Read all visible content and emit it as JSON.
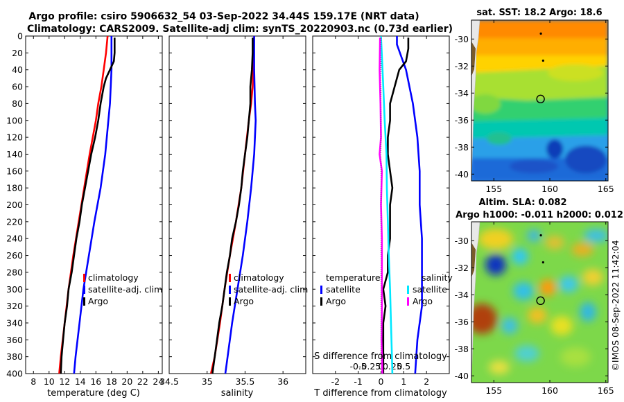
{
  "title": {
    "line1": "Argo profile: csiro 5906632_54 03-Sep-2022 34.44S 159.17E (NRT data)",
    "line2": "Climatology: CARS2009. Satellite-adj clim: synTS_20220903.nc (0.73d earlier)"
  },
  "colors": {
    "climatology": "#ff0000",
    "satellite": "#0000ff",
    "argo": "#000000",
    "cyan": "#00e8ff",
    "magenta": "#ff00ff"
  },
  "chart_data": [
    {
      "type": "line",
      "name": "temperature",
      "xlabel": "temperature (deg C)",
      "ylabel": "",
      "xlim": [
        7,
        24.5
      ],
      "ylim": [
        400,
        0
      ],
      "xticks": [
        "8",
        "10",
        "12",
        "14",
        "16",
        "18",
        "20",
        "22",
        "24"
      ],
      "xtick_values": [
        8,
        10,
        12,
        14,
        16,
        18,
        20,
        22,
        24
      ],
      "yticks": [
        "0",
        "20",
        "40",
        "60",
        "80",
        "100",
        "120",
        "140",
        "160",
        "180",
        "200",
        "220",
        "240",
        "260",
        "280",
        "300",
        "320",
        "340",
        "360",
        "380",
        "400"
      ],
      "ytick_values": [
        0,
        20,
        40,
        60,
        80,
        100,
        120,
        140,
        160,
        180,
        200,
        220,
        240,
        260,
        280,
        300,
        320,
        340,
        360,
        380,
        400
      ],
      "legend": [
        "climatology",
        "satellite-adj. clim",
        "Argo"
      ],
      "series": [
        {
          "name": "climatology",
          "color": "#ff0000",
          "depth": [
            0,
            20,
            40,
            60,
            80,
            100,
            140,
            180,
            220,
            260,
            300,
            340,
            380,
            400
          ],
          "values": [
            17.5,
            17.3,
            17.0,
            16.7,
            16.3,
            16.0,
            15.2,
            14.5,
            13.8,
            13.1,
            12.5,
            12.0,
            11.5,
            11.3
          ]
        },
        {
          "name": "satellite-adj. clim",
          "color": "#0000ff",
          "depth": [
            0,
            10,
            40,
            60,
            80,
            100,
            140,
            180,
            220,
            260,
            300,
            340,
            380,
            400
          ],
          "values": [
            18.0,
            18.0,
            18.0,
            17.9,
            17.8,
            17.6,
            17.2,
            16.6,
            15.8,
            15.1,
            14.4,
            13.9,
            13.4,
            13.2
          ]
        },
        {
          "name": "Argo",
          "color": "#000000",
          "depth": [
            2,
            20,
            30,
            40,
            50,
            60,
            80,
            100,
            120,
            140,
            160,
            180,
            200,
            220,
            240,
            260,
            280,
            300,
            320,
            340,
            360,
            380,
            400
          ],
          "values": [
            18.4,
            18.4,
            18.3,
            17.8,
            17.3,
            17.0,
            16.6,
            16.3,
            15.9,
            15.4,
            15.0,
            14.6,
            14.2,
            13.9,
            13.5,
            13.2,
            12.9,
            12.5,
            12.3,
            12.0,
            11.8,
            11.6,
            11.5
          ]
        }
      ]
    },
    {
      "type": "line",
      "name": "salinity",
      "xlabel": "salinity",
      "ylabel": "",
      "xlim": [
        34.5,
        36.3
      ],
      "ylim": [
        400,
        0
      ],
      "xticks": [
        "34.5",
        "35",
        "35.5",
        "36"
      ],
      "xtick_values": [
        34.5,
        35,
        35.5,
        36
      ],
      "legend": [
        "climatology",
        "satellite-adj. clim",
        "Argo"
      ],
      "series": [
        {
          "name": "climatology",
          "color": "#ff0000",
          "depth": [
            0,
            40,
            60,
            80,
            100,
            140,
            180,
            220,
            260,
            300,
            340,
            380,
            400
          ],
          "values": [
            35.62,
            35.61,
            35.6,
            35.58,
            35.55,
            35.5,
            35.45,
            35.38,
            35.3,
            35.23,
            35.17,
            35.1,
            35.05
          ]
        },
        {
          "name": "satellite-adj. clim",
          "color": "#0000ff",
          "depth": [
            0,
            40,
            80,
            100,
            120,
            140,
            180,
            220,
            260,
            300,
            340,
            380,
            400
          ],
          "values": [
            35.62,
            35.62,
            35.63,
            35.64,
            35.63,
            35.62,
            35.58,
            35.53,
            35.47,
            35.4,
            35.33,
            35.27,
            35.24
          ]
        },
        {
          "name": "Argo",
          "color": "#000000",
          "depth": [
            2,
            20,
            40,
            60,
            80,
            100,
            120,
            140,
            160,
            180,
            200,
            220,
            240,
            260,
            280,
            300,
            320,
            340,
            360,
            380,
            400
          ],
          "values": [
            35.6,
            35.6,
            35.59,
            35.57,
            35.57,
            35.55,
            35.53,
            35.5,
            35.47,
            35.45,
            35.42,
            35.38,
            35.33,
            35.3,
            35.26,
            35.23,
            35.2,
            35.16,
            35.13,
            35.1,
            35.07
          ]
        }
      ]
    },
    {
      "type": "line",
      "name": "difference from climatology",
      "xlabel": "T difference from climatology",
      "top_xlabel": "S difference from climatology",
      "xlim": [
        -3,
        3
      ],
      "ylim": [
        400,
        0
      ],
      "xticks": [
        "-2",
        "-1",
        "0",
        "1",
        "2"
      ],
      "xtick_values": [
        -2,
        -1,
        0,
        1,
        2
      ],
      "s_xticks": [
        "-0.5",
        "-0.25",
        "0",
        "0.25",
        "0.5"
      ],
      "s_xtick_values": [
        -0.5,
        -0.25,
        0,
        0.25,
        0.5
      ],
      "legend_temperature": {
        "title": "temperature",
        "items": [
          "satellite",
          "Argo"
        ]
      },
      "legend_salinity": {
        "title": "salinity",
        "items": [
          "satellite",
          "Argo"
        ]
      },
      "series": [
        {
          "name": "temperature satellite",
          "color": "#0000ff",
          "depth": [
            0,
            10,
            40,
            80,
            120,
            160,
            200,
            240,
            280,
            320,
            360,
            400
          ],
          "values": [
            0.7,
            0.7,
            1.1,
            1.4,
            1.6,
            1.7,
            1.7,
            1.8,
            1.8,
            1.8,
            1.6,
            1.5
          ]
        },
        {
          "name": "temperature Argo",
          "color": "#000000",
          "depth": [
            2,
            15,
            30,
            40,
            60,
            80,
            100,
            120,
            140,
            160,
            180,
            200,
            220,
            240,
            260,
            280,
            300,
            320,
            340,
            360,
            380,
            400
          ],
          "values": [
            1.2,
            1.2,
            1.1,
            0.8,
            0.6,
            0.4,
            0.4,
            0.3,
            0.3,
            0.4,
            0.5,
            0.4,
            0.4,
            0.4,
            0.3,
            0.3,
            0.1,
            0.2,
            0.1,
            0.1,
            0.1,
            0.1
          ]
        },
        {
          "name": "salinity satellite",
          "color": "#00e8ff",
          "depth": [
            0,
            60,
            100,
            140,
            180,
            220,
            260,
            300,
            340,
            380,
            400
          ],
          "values": [
            0,
            0.05,
            0.08,
            0.12,
            0.13,
            0.15,
            0.17,
            0.2,
            0.22,
            0.24,
            0.25
          ]
        },
        {
          "name": "salinity Argo",
          "color": "#ff00ff",
          "depth": [
            2,
            40,
            80,
            120,
            140,
            160,
            200,
            240,
            280,
            320,
            360,
            400
          ],
          "values": [
            -0.02,
            -0.03,
            -0.01,
            0,
            -0.03,
            0.02,
            0,
            0.02,
            0.02,
            0.02,
            0.01,
            0.03
          ]
        }
      ]
    },
    {
      "type": "heatmap",
      "name": "sat. SST",
      "title": "sat. SST: 18.2 Argo: 18.6",
      "xlim": [
        153,
        165.2
      ],
      "ylim": [
        -40.5,
        -28.6
      ],
      "xticks": [
        "155",
        "160",
        "165"
      ],
      "xtick_values": [
        155,
        160,
        165
      ],
      "yticks": [
        "-30",
        "-32",
        "-34",
        "-36",
        "-38",
        "-40"
      ],
      "ytick_values": [
        -30,
        -32,
        -34,
        -36,
        -38,
        -40
      ],
      "argo_position": [
        159.17,
        -34.44
      ],
      "previous_positions": [
        [
          159.2,
          -29.6
        ],
        [
          159.4,
          -31.6
        ]
      ]
    },
    {
      "type": "heatmap",
      "name": "Altim. SLA",
      "title_line1": "Altim. SLA: 0.082",
      "title_line2": "Argo h1000: -0.011 h2000: 0.012",
      "xlim": [
        153,
        165.2
      ],
      "ylim": [
        -40.5,
        -28.6
      ],
      "xticks": [
        "155",
        "160",
        "165"
      ],
      "xtick_values": [
        155,
        160,
        165
      ],
      "yticks": [
        "-30",
        "-32",
        "-34",
        "-36",
        "-38",
        "-40"
      ],
      "ytick_values": [
        -30,
        -32,
        -34,
        -36,
        -38,
        -40
      ],
      "argo_position": [
        159.17,
        -34.44
      ],
      "previous_positions": [
        [
          159.2,
          -29.6
        ],
        [
          159.4,
          -31.6
        ]
      ]
    }
  ],
  "watermark": "©IMOS 08-Sep-2022 11:42:04"
}
